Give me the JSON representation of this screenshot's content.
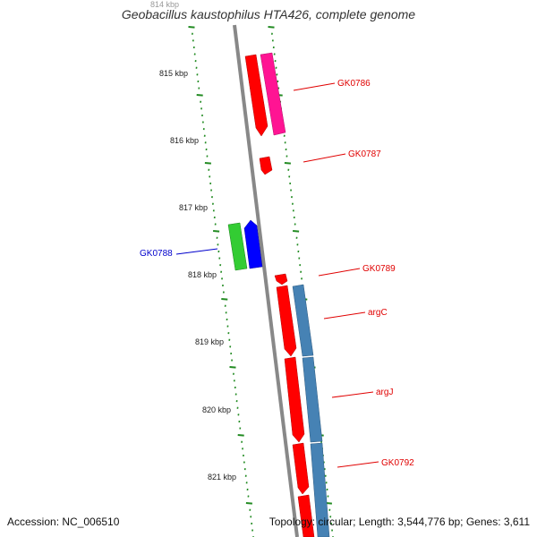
{
  "title": "Geobacillus kaustophilus HTA426, complete genome",
  "footer": {
    "accession": "Accession: NC_006510",
    "summary": "Topology: circular; Length: 3,544,776 bp; Genes: 3,611"
  },
  "colors": {
    "backbone": "#888888",
    "tick": "#228b22",
    "gene_label_red": "#e00000",
    "gene_label_blue": "#0000cc",
    "red_gene": "#ff0000",
    "magenta_gene": "#ff1493",
    "green_gene": "#33cc33",
    "blue_gene": "#0000ff",
    "steelblue_gene": "#4682b4"
  },
  "kbp_labels": [
    "814 kbp",
    "815 kbp",
    "816 kbp",
    "817 kbp",
    "818 kbp",
    "819 kbp",
    "820 kbp",
    "821 kbp"
  ],
  "gene_labels": [
    {
      "name": "GK0786",
      "color": "red"
    },
    {
      "name": "GK0787",
      "color": "red"
    },
    {
      "name": "GK0788",
      "color": "blue"
    },
    {
      "name": "GK0789",
      "color": "red"
    },
    {
      "name": "argC",
      "color": "red"
    },
    {
      "name": "argJ",
      "color": "red"
    },
    {
      "name": "GK0792",
      "color": "red"
    }
  ]
}
